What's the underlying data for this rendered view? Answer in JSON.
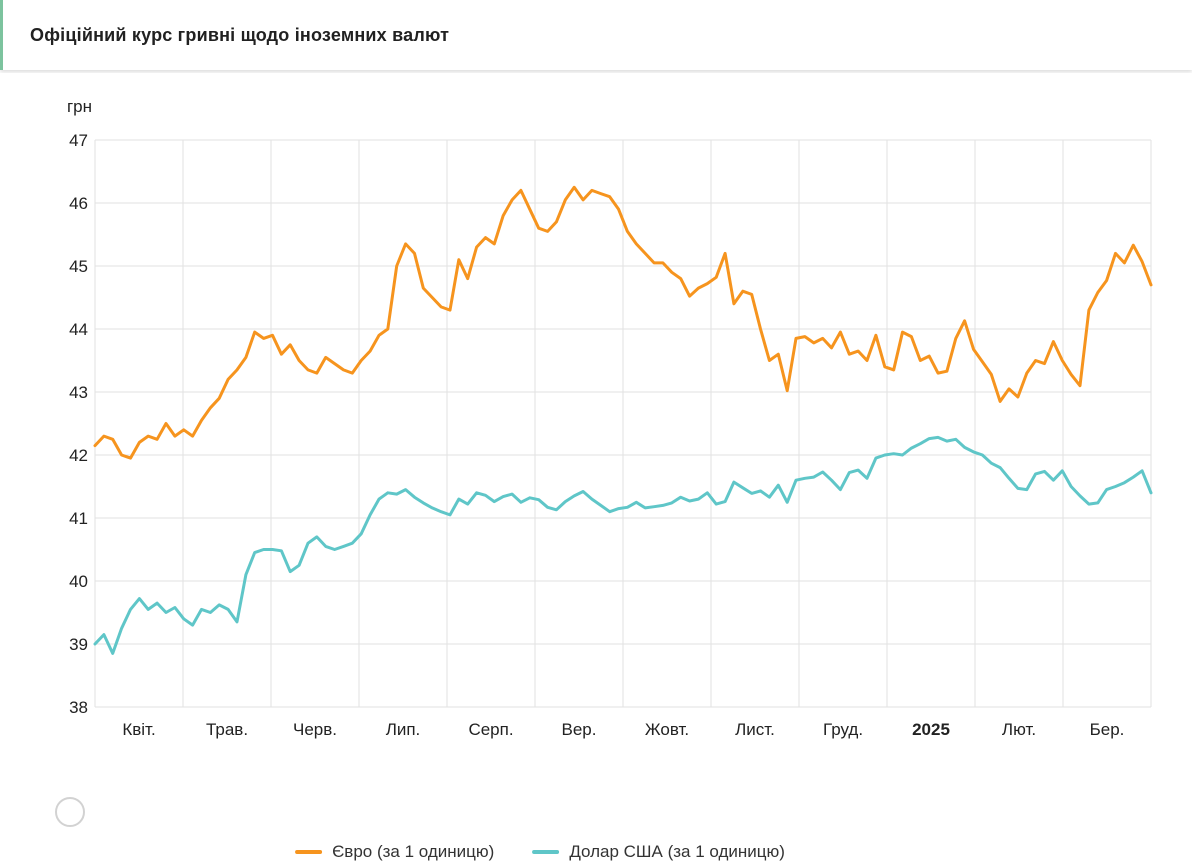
{
  "header": {
    "title": "Офіційний курс гривні щодо іноземних валют"
  },
  "chart": {
    "unit_label": "грн",
    "y_ticks": [
      47,
      46,
      45,
      44,
      43,
      42,
      41,
      40,
      39,
      38
    ],
    "x_labels": [
      "Квіт.",
      "Трав.",
      "Черв.",
      "Лип.",
      "Серп.",
      "Вер.",
      "Жовт.",
      "Лист.",
      "Груд.",
      "2025",
      "Лют.",
      "Бер."
    ],
    "bold_x_label": "2025",
    "colors": {
      "euro": "#f6941e",
      "usd": "#5fc6c8",
      "grid": "#e2e2e2",
      "label": "#222222",
      "accent_green": "#7cc39e"
    }
  },
  "legend": [
    {
      "label": "Євро (за 1 одиницю)",
      "color": "#f6941e"
    },
    {
      "label": "Долар США (за 1 одиницю)",
      "color": "#5fc6c8"
    }
  ],
  "chart_data": {
    "type": "line",
    "title": "Офіційний курс гривні щодо іноземних валют",
    "ylabel": "грн",
    "ylim": [
      38,
      47
    ],
    "grid": true,
    "legend_position": "bottom",
    "x_categories": [
      "Квіт.",
      "Трав.",
      "Черв.",
      "Лип.",
      "Серп.",
      "Вер.",
      "Жовт.",
      "Лист.",
      "Груд.",
      "2025",
      "Лют.",
      "Бер."
    ],
    "points_per_month": 10,
    "series": [
      {
        "name": "Євро (за 1 одиницю)",
        "color": "#f6941e",
        "values": [
          42.15,
          42.3,
          42.25,
          42.0,
          41.95,
          42.2,
          42.3,
          42.25,
          42.5,
          42.3,
          42.4,
          42.3,
          42.55,
          42.75,
          42.9,
          43.2,
          43.35,
          43.55,
          43.95,
          43.85,
          43.9,
          43.6,
          43.75,
          43.5,
          43.35,
          43.3,
          43.55,
          43.45,
          43.35,
          43.3,
          43.5,
          43.65,
          43.9,
          44.0,
          45.0,
          45.35,
          45.2,
          44.65,
          44.5,
          44.35,
          44.3,
          45.1,
          44.8,
          45.3,
          45.45,
          45.35,
          45.8,
          46.05,
          46.2,
          45.9,
          45.6,
          45.55,
          45.7,
          46.05,
          46.25,
          46.05,
          46.2,
          46.15,
          46.1,
          45.9,
          45.55,
          45.35,
          45.2,
          45.05,
          45.05,
          44.9,
          44.8,
          44.52,
          44.65,
          44.72,
          44.82,
          45.2,
          44.4,
          44.6,
          44.55,
          44.0,
          43.5,
          43.6,
          43.02,
          43.85,
          43.88,
          43.78,
          43.85,
          43.7,
          43.95,
          43.6,
          43.65,
          43.5,
          43.9,
          43.4,
          43.35,
          43.95,
          43.88,
          43.5,
          43.57,
          43.3,
          43.33,
          43.85,
          44.13,
          43.68,
          43.48,
          43.28,
          42.85,
          43.05,
          42.92,
          43.3,
          43.5,
          43.45,
          43.8,
          43.5,
          43.28,
          43.1,
          44.3,
          44.58,
          44.77,
          45.2,
          45.05,
          45.33,
          45.07,
          44.7
        ]
      },
      {
        "name": "Долар США (за 1 одиницю)",
        "color": "#5fc6c8",
        "values": [
          39.0,
          39.15,
          38.85,
          39.25,
          39.55,
          39.72,
          39.55,
          39.65,
          39.5,
          39.58,
          39.4,
          39.3,
          39.55,
          39.5,
          39.62,
          39.55,
          39.35,
          40.1,
          40.45,
          40.5,
          40.5,
          40.48,
          40.15,
          40.25,
          40.6,
          40.7,
          40.55,
          40.5,
          40.55,
          40.6,
          40.75,
          41.05,
          41.3,
          41.4,
          41.38,
          41.45,
          41.33,
          41.24,
          41.16,
          41.1,
          41.05,
          41.3,
          41.22,
          41.4,
          41.36,
          41.26,
          41.34,
          41.38,
          41.25,
          41.32,
          41.29,
          41.17,
          41.13,
          41.26,
          41.35,
          41.42,
          41.3,
          41.2,
          41.1,
          41.15,
          41.17,
          41.25,
          41.16,
          41.18,
          41.2,
          41.24,
          41.33,
          41.27,
          41.3,
          41.4,
          41.22,
          41.26,
          41.57,
          41.48,
          41.39,
          41.43,
          41.33,
          41.52,
          41.25,
          41.6,
          41.63,
          41.65,
          41.73,
          41.6,
          41.45,
          41.72,
          41.76,
          41.63,
          41.95,
          42.0,
          42.02,
          42.0,
          42.11,
          42.18,
          42.26,
          42.28,
          42.22,
          42.25,
          42.12,
          42.05,
          42.0,
          41.87,
          41.8,
          41.63,
          41.47,
          41.45,
          41.7,
          41.74,
          41.6,
          41.75,
          41.5,
          41.35,
          41.22,
          41.24,
          41.45,
          41.5,
          41.56,
          41.65,
          41.75,
          41.4
        ]
      }
    ]
  }
}
